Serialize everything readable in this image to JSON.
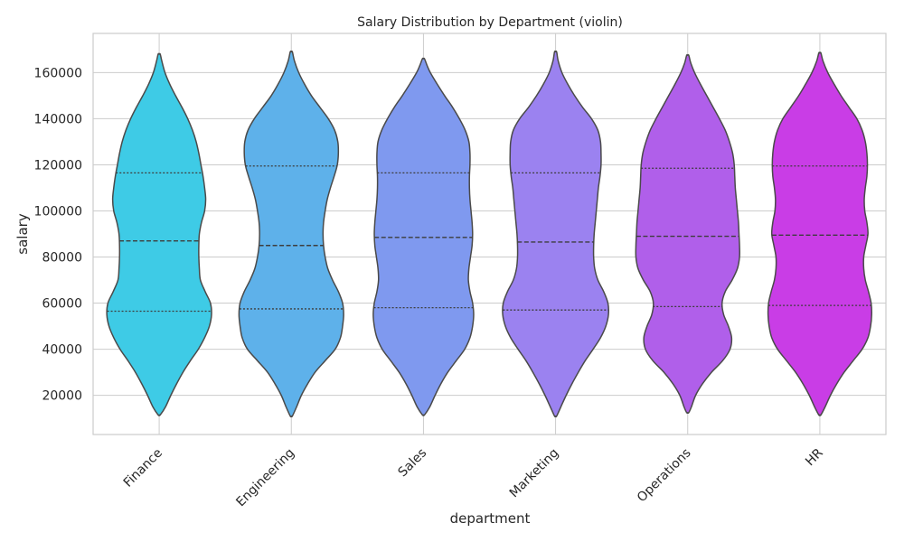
{
  "chart_data": {
    "type": "violin",
    "title": "Salary Distribution by Department (violin)",
    "xlabel": "department",
    "ylabel": "salary",
    "ylim": [
      3000,
      177000
    ],
    "yticks": [
      20000,
      40000,
      60000,
      80000,
      100000,
      120000,
      140000,
      160000
    ],
    "grid": true,
    "categories": [
      "Finance",
      "Engineering",
      "Sales",
      "Marketing",
      "Operations",
      "HR"
    ],
    "colors": [
      "#3ecbe6",
      "#5eb1ea",
      "#7f99ef",
      "#9b82f0",
      "#b05fea",
      "#c93de6"
    ],
    "violins": [
      {
        "category": "Finance",
        "min": 11500,
        "max": 168000,
        "q1": 56500,
        "median": 87000,
        "q3": 116500,
        "profile": [
          [
            11500,
            0.02
          ],
          [
            15000,
            0.12
          ],
          [
            20000,
            0.22
          ],
          [
            25000,
            0.33
          ],
          [
            30000,
            0.45
          ],
          [
            35000,
            0.59
          ],
          [
            40000,
            0.74
          ],
          [
            45000,
            0.86
          ],
          [
            50000,
            0.95
          ],
          [
            55000,
            0.99
          ],
          [
            60000,
            0.97
          ],
          [
            65000,
            0.87
          ],
          [
            70000,
            0.78
          ],
          [
            75000,
            0.76
          ],
          [
            80000,
            0.75
          ],
          [
            85000,
            0.75
          ],
          [
            90000,
            0.76
          ],
          [
            95000,
            0.8
          ],
          [
            100000,
            0.86
          ],
          [
            105000,
            0.88
          ],
          [
            110000,
            0.86
          ],
          [
            115000,
            0.83
          ],
          [
            120000,
            0.79
          ],
          [
            125000,
            0.75
          ],
          [
            130000,
            0.7
          ],
          [
            135000,
            0.63
          ],
          [
            140000,
            0.54
          ],
          [
            145000,
            0.43
          ],
          [
            150000,
            0.31
          ],
          [
            155000,
            0.2
          ],
          [
            160000,
            0.11
          ],
          [
            165000,
            0.05
          ],
          [
            168000,
            0.02
          ]
        ]
      },
      {
        "category": "Engineering",
        "min": 11000,
        "max": 169000,
        "q1": 57500,
        "median": 85000,
        "q3": 119500,
        "profile": [
          [
            11000,
            0.02
          ],
          [
            15000,
            0.1
          ],
          [
            20000,
            0.19
          ],
          [
            25000,
            0.31
          ],
          [
            30000,
            0.45
          ],
          [
            35000,
            0.64
          ],
          [
            40000,
            0.83
          ],
          [
            45000,
            0.93
          ],
          [
            50000,
            0.97
          ],
          [
            55000,
            0.99
          ],
          [
            60000,
            0.97
          ],
          [
            65000,
            0.89
          ],
          [
            70000,
            0.78
          ],
          [
            75000,
            0.69
          ],
          [
            80000,
            0.64
          ],
          [
            85000,
            0.61
          ],
          [
            90000,
            0.6
          ],
          [
            95000,
            0.61
          ],
          [
            100000,
            0.64
          ],
          [
            105000,
            0.68
          ],
          [
            110000,
            0.74
          ],
          [
            115000,
            0.81
          ],
          [
            120000,
            0.87
          ],
          [
            125000,
            0.89
          ],
          [
            130000,
            0.88
          ],
          [
            135000,
            0.82
          ],
          [
            140000,
            0.7
          ],
          [
            145000,
            0.54
          ],
          [
            150000,
            0.38
          ],
          [
            155000,
            0.25
          ],
          [
            160000,
            0.14
          ],
          [
            165000,
            0.06
          ],
          [
            169000,
            0.02
          ]
        ]
      },
      {
        "category": "Sales",
        "min": 11500,
        "max": 166000,
        "q1": 58000,
        "median": 88500,
        "q3": 116500,
        "profile": [
          [
            11500,
            0.02
          ],
          [
            15000,
            0.12
          ],
          [
            20000,
            0.22
          ],
          [
            25000,
            0.33
          ],
          [
            30000,
            0.46
          ],
          [
            35000,
            0.62
          ],
          [
            40000,
            0.78
          ],
          [
            45000,
            0.88
          ],
          [
            50000,
            0.93
          ],
          [
            55000,
            0.95
          ],
          [
            60000,
            0.93
          ],
          [
            65000,
            0.88
          ],
          [
            70000,
            0.85
          ],
          [
            75000,
            0.86
          ],
          [
            80000,
            0.89
          ],
          [
            85000,
            0.92
          ],
          [
            90000,
            0.93
          ],
          [
            95000,
            0.92
          ],
          [
            100000,
            0.9
          ],
          [
            105000,
            0.88
          ],
          [
            110000,
            0.87
          ],
          [
            115000,
            0.87
          ],
          [
            120000,
            0.88
          ],
          [
            125000,
            0.88
          ],
          [
            130000,
            0.86
          ],
          [
            135000,
            0.79
          ],
          [
            140000,
            0.68
          ],
          [
            145000,
            0.55
          ],
          [
            150000,
            0.4
          ],
          [
            155000,
            0.26
          ],
          [
            160000,
            0.13
          ],
          [
            163000,
            0.07
          ],
          [
            166000,
            0.02
          ]
        ]
      },
      {
        "category": "Marketing",
        "min": 11000,
        "max": 169000,
        "q1": 57000,
        "median": 86500,
        "q3": 116500,
        "profile": [
          [
            11000,
            0.02
          ],
          [
            15000,
            0.1
          ],
          [
            20000,
            0.2
          ],
          [
            25000,
            0.31
          ],
          [
            30000,
            0.43
          ],
          [
            35000,
            0.56
          ],
          [
            40000,
            0.71
          ],
          [
            45000,
            0.85
          ],
          [
            50000,
            0.95
          ],
          [
            55000,
            1.0
          ],
          [
            60000,
            0.99
          ],
          [
            65000,
            0.91
          ],
          [
            70000,
            0.8
          ],
          [
            75000,
            0.74
          ],
          [
            80000,
            0.72
          ],
          [
            85000,
            0.72
          ],
          [
            90000,
            0.73
          ],
          [
            95000,
            0.75
          ],
          [
            100000,
            0.77
          ],
          [
            105000,
            0.79
          ],
          [
            110000,
            0.81
          ],
          [
            115000,
            0.84
          ],
          [
            120000,
            0.86
          ],
          [
            125000,
            0.86
          ],
          [
            130000,
            0.85
          ],
          [
            135000,
            0.8
          ],
          [
            140000,
            0.68
          ],
          [
            145000,
            0.51
          ],
          [
            150000,
            0.36
          ],
          [
            155000,
            0.23
          ],
          [
            160000,
            0.12
          ],
          [
            165000,
            0.05
          ],
          [
            169000,
            0.02
          ]
        ]
      },
      {
        "category": "Operations",
        "min": 12500,
        "max": 167500,
        "q1": 58500,
        "median": 89000,
        "q3": 118500,
        "profile": [
          [
            12500,
            0.02
          ],
          [
            15000,
            0.07
          ],
          [
            20000,
            0.15
          ],
          [
            25000,
            0.28
          ],
          [
            30000,
            0.45
          ],
          [
            35000,
            0.66
          ],
          [
            40000,
            0.8
          ],
          [
            45000,
            0.83
          ],
          [
            50000,
            0.77
          ],
          [
            55000,
            0.68
          ],
          [
            60000,
            0.65
          ],
          [
            65000,
            0.71
          ],
          [
            70000,
            0.84
          ],
          [
            75000,
            0.94
          ],
          [
            80000,
            0.98
          ],
          [
            85000,
            0.98
          ],
          [
            90000,
            0.97
          ],
          [
            95000,
            0.96
          ],
          [
            100000,
            0.94
          ],
          [
            105000,
            0.92
          ],
          [
            110000,
            0.9
          ],
          [
            115000,
            0.89
          ],
          [
            120000,
            0.88
          ],
          [
            125000,
            0.85
          ],
          [
            130000,
            0.79
          ],
          [
            135000,
            0.71
          ],
          [
            140000,
            0.6
          ],
          [
            145000,
            0.48
          ],
          [
            150000,
            0.36
          ],
          [
            155000,
            0.24
          ],
          [
            160000,
            0.13
          ],
          [
            164000,
            0.06
          ],
          [
            167500,
            0.02
          ]
        ]
      },
      {
        "category": "HR",
        "min": 11500,
        "max": 168500,
        "q1": 59000,
        "median": 89500,
        "q3": 119500,
        "profile": [
          [
            11500,
            0.02
          ],
          [
            15000,
            0.1
          ],
          [
            20000,
            0.2
          ],
          [
            25000,
            0.32
          ],
          [
            30000,
            0.46
          ],
          [
            35000,
            0.63
          ],
          [
            40000,
            0.8
          ],
          [
            45000,
            0.91
          ],
          [
            50000,
            0.96
          ],
          [
            55000,
            0.98
          ],
          [
            60000,
            0.97
          ],
          [
            65000,
            0.92
          ],
          [
            70000,
            0.86
          ],
          [
            75000,
            0.83
          ],
          [
            80000,
            0.83
          ],
          [
            85000,
            0.87
          ],
          [
            90000,
            0.91
          ],
          [
            95000,
            0.89
          ],
          [
            100000,
            0.85
          ],
          [
            105000,
            0.84
          ],
          [
            110000,
            0.86
          ],
          [
            115000,
            0.89
          ],
          [
            120000,
            0.9
          ],
          [
            125000,
            0.89
          ],
          [
            130000,
            0.86
          ],
          [
            135000,
            0.8
          ],
          [
            140000,
            0.7
          ],
          [
            145000,
            0.55
          ],
          [
            150000,
            0.4
          ],
          [
            155000,
            0.27
          ],
          [
            160000,
            0.15
          ],
          [
            165000,
            0.06
          ],
          [
            168500,
            0.02
          ]
        ]
      }
    ]
  }
}
